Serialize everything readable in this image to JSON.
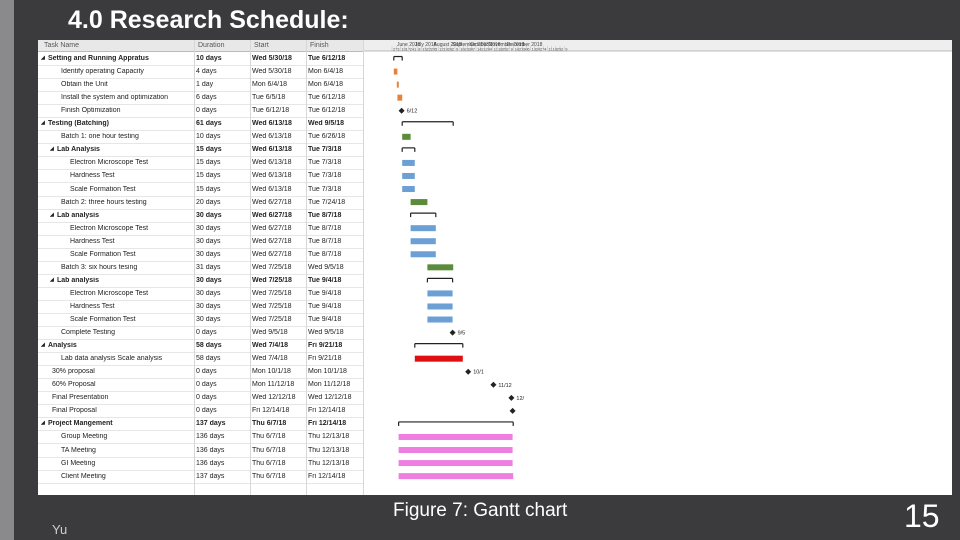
{
  "slide": {
    "title": "4.0 Research Schedule:",
    "caption": "Figure 7: Gantt chart",
    "footer": "Yu",
    "page_number": "15"
  },
  "table": {
    "columns": [
      "Task Name",
      "Duration",
      "Start",
      "Finish"
    ],
    "rows": [
      {
        "name": "Setting and Running Appratus",
        "dur": "10 days",
        "start": "Wed 5/30/18",
        "finish": "Tue 6/12/18",
        "level": 0,
        "summary": true
      },
      {
        "name": "Identify operating Capacity",
        "dur": "4 days",
        "start": "Wed 5/30/18",
        "finish": "Mon 6/4/18",
        "level": 1
      },
      {
        "name": "Obtain the Unit",
        "dur": "1 day",
        "start": "Mon 6/4/18",
        "finish": "Mon 6/4/18",
        "level": 1
      },
      {
        "name": "Install the system and optimization",
        "dur": "6 days",
        "start": "Tue 6/5/18",
        "finish": "Tue 6/12/18",
        "level": 1
      },
      {
        "name": "Finish Optimization",
        "dur": "0 days",
        "start": "Tue 6/12/18",
        "finish": "Tue 6/12/18",
        "level": 1
      },
      {
        "name": "Testing (Batching)",
        "dur": "61 days",
        "start": "Wed 6/13/18",
        "finish": "Wed 9/5/18",
        "level": 0,
        "summary": true
      },
      {
        "name": "Batch 1: one hour testing",
        "dur": "10 days",
        "start": "Wed 6/13/18",
        "finish": "Tue 6/26/18",
        "level": 1
      },
      {
        "name": "Lab Analysis",
        "dur": "15 days",
        "start": "Wed 6/13/18",
        "finish": "Tue 7/3/18",
        "level": 1,
        "summary": true
      },
      {
        "name": "Electron Microscope Test",
        "dur": "15 days",
        "start": "Wed 6/13/18",
        "finish": "Tue 7/3/18",
        "level": 2
      },
      {
        "name": "Hardness Test",
        "dur": "15 days",
        "start": "Wed 6/13/18",
        "finish": "Tue 7/3/18",
        "level": 2
      },
      {
        "name": "Scale Formation Test",
        "dur": "15 days",
        "start": "Wed 6/13/18",
        "finish": "Tue 7/3/18",
        "level": 2
      },
      {
        "name": "Batch 2: three hours testing",
        "dur": "20 days",
        "start": "Wed 6/27/18",
        "finish": "Tue 7/24/18",
        "level": 1
      },
      {
        "name": "Lab analysis",
        "dur": "30 days",
        "start": "Wed 6/27/18",
        "finish": "Tue 8/7/18",
        "level": 1,
        "summary": true
      },
      {
        "name": "Electron Microscope Test",
        "dur": "30 days",
        "start": "Wed 6/27/18",
        "finish": "Tue 8/7/18",
        "level": 2
      },
      {
        "name": "Hardness Test",
        "dur": "30 days",
        "start": "Wed 6/27/18",
        "finish": "Tue 8/7/18",
        "level": 2
      },
      {
        "name": "Scale Formation Test",
        "dur": "30 days",
        "start": "Wed 6/27/18",
        "finish": "Tue 8/7/18",
        "level": 2
      },
      {
        "name": "Batch 3: six hours tesing",
        "dur": "31 days",
        "start": "Wed 7/25/18",
        "finish": "Wed 9/5/18",
        "level": 1
      },
      {
        "name": "Lab analysis",
        "dur": "30 days",
        "start": "Wed 7/25/18",
        "finish": "Tue 9/4/18",
        "level": 1,
        "summary": true
      },
      {
        "name": "Electron Microscope Test",
        "dur": "30 days",
        "start": "Wed 7/25/18",
        "finish": "Tue 9/4/18",
        "level": 2
      },
      {
        "name": "Hardness Test",
        "dur": "30 days",
        "start": "Wed 7/25/18",
        "finish": "Tue 9/4/18",
        "level": 2
      },
      {
        "name": "Scale Formation Test",
        "dur": "30 days",
        "start": "Wed 7/25/18",
        "finish": "Tue 9/4/18",
        "level": 2
      },
      {
        "name": "Complete Testing",
        "dur": "0 days",
        "start": "Wed 9/5/18",
        "finish": "Wed 9/5/18",
        "level": 1
      },
      {
        "name": "Analysis",
        "dur": "58 days",
        "start": "Wed 7/4/18",
        "finish": "Fri 9/21/18",
        "level": 0,
        "summary": true
      },
      {
        "name": "Lab data analysis Scale analysis",
        "dur": "58 days",
        "start": "Wed 7/4/18",
        "finish": "Fri 9/21/18",
        "level": 1
      },
      {
        "name": "30% proposal",
        "dur": "0 days",
        "start": "Mon 10/1/18",
        "finish": "Mon 10/1/18",
        "level": 0
      },
      {
        "name": "60% Proposal",
        "dur": "0 days",
        "start": "Mon 11/12/18",
        "finish": "Mon 11/12/18",
        "level": 0
      },
      {
        "name": "Final Presentation",
        "dur": "0 days",
        "start": "Wed 12/12/18",
        "finish": "Wed 12/12/18",
        "level": 0
      },
      {
        "name": "Final Proposal",
        "dur": "0 days",
        "start": "Fri 12/14/18",
        "finish": "Fri 12/14/18",
        "level": 0
      },
      {
        "name": "Project Mangement",
        "dur": "137 days",
        "start": "Thu 6/7/18",
        "finish": "Fri 12/14/18",
        "level": 0,
        "summary": true
      },
      {
        "name": "Group Meeting",
        "dur": "136 days",
        "start": "Thu 6/7/18",
        "finish": "Thu 12/13/18",
        "level": 1
      },
      {
        "name": "TA Meeting",
        "dur": "136 days",
        "start": "Thu 6/7/18",
        "finish": "Thu 12/13/18",
        "level": 1
      },
      {
        "name": "GI Meeting",
        "dur": "136 days",
        "start": "Thu 6/7/18",
        "finish": "Thu 12/13/18",
        "level": 1
      },
      {
        "name": "Client Meeting",
        "dur": "137 days",
        "start": "Thu 6/7/18",
        "finish": "Fri 12/14/18",
        "level": 1
      }
    ]
  },
  "gantt": {
    "months": [
      "June 2018",
      "July 2018",
      "August 2018",
      "September 2018",
      "October 2018",
      "November 2018",
      "December 2018"
    ],
    "week_ticks": [
      "27",
      "3",
      "10",
      "17",
      "24",
      "1",
      "8",
      "15",
      "22",
      "29",
      "5",
      "12",
      "19",
      "26",
      "2",
      "9",
      "16",
      "23",
      "30",
      "7",
      "14",
      "21",
      "28",
      "4",
      "11",
      "18",
      "25",
      "2",
      "9",
      "16",
      "23",
      "30",
      "6",
      "13",
      "20",
      "27",
      "4",
      "11",
      "18",
      "25",
      "2",
      "9"
    ],
    "milestone_labels": [
      "6/12",
      "9/5",
      "10/1",
      "11/12",
      "12/"
    ],
    "colors": {
      "orange": "#e8823a",
      "green": "#5a8c3c",
      "blue": "#6c9fd4",
      "red": "#e01010",
      "pink": "#ee7ee0",
      "summary": "#222222"
    }
  }
}
